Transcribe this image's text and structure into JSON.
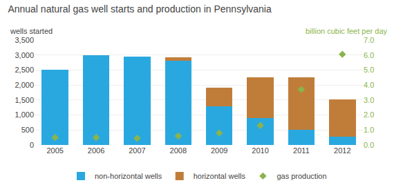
{
  "chart_data": {
    "type": "bar",
    "title": "Annual natural gas well starts and production in Pennsylvania",
    "stacked": true,
    "grid": true,
    "legend": "bottom",
    "categories": [
      "2005",
      "2006",
      "2007",
      "2008",
      "2009",
      "2010",
      "2011",
      "2012"
    ],
    "ylabel": "wells started",
    "y2label": "billion cubic feet per day",
    "series": [
      {
        "name": "non-horizontal wells",
        "type": "bar",
        "color": "#29a8e0",
        "values": [
          2500,
          3000,
          2950,
          2800,
          1300,
          900,
          500,
          270
        ]
      },
      {
        "name": "horizontal wells",
        "type": "bar",
        "color": "#c07d3a",
        "values": [
          0,
          0,
          0,
          120,
          620,
          1350,
          1750,
          1250
        ]
      },
      {
        "name": "gas production",
        "type": "scatter",
        "marker": "diamond",
        "color": "#8ab44a",
        "axis": "y2",
        "values": [
          0.5,
          0.5,
          0.45,
          0.6,
          0.8,
          1.3,
          3.7,
          6.05
        ]
      }
    ],
    "ylim": [
      0,
      3500
    ],
    "yticks": [
      0,
      500,
      {
        "value": 1000,
        "label": "1,000"
      },
      {
        "value": 1500,
        "label": "1,500"
      },
      {
        "value": 2000,
        "label": "2,000"
      },
      {
        "value": 2500,
        "label": "2,500"
      },
      {
        "value": 3000,
        "label": "3,000"
      },
      {
        "value": 3500,
        "label": "3,500"
      }
    ],
    "y2lim": [
      0,
      7.0
    ],
    "y2ticks": [
      {
        "value": 0,
        "label": "0.0"
      },
      {
        "value": 1,
        "label": "1.0"
      },
      {
        "value": 2,
        "label": "2.0"
      },
      {
        "value": 3,
        "label": "3.0"
      },
      {
        "value": 4,
        "label": "4.0"
      },
      {
        "value": 5,
        "label": "5.0"
      },
      {
        "value": 6,
        "label": "6.0"
      },
      {
        "value": 7,
        "label": "7.0"
      }
    ]
  }
}
